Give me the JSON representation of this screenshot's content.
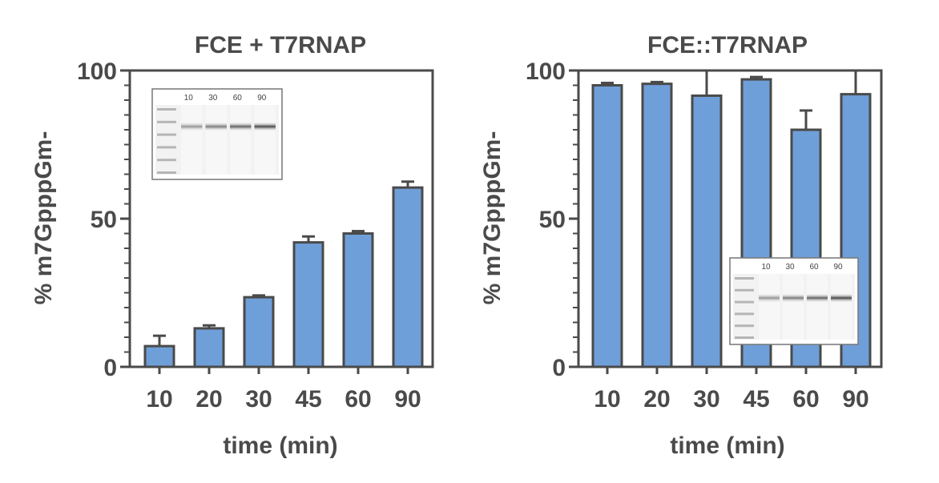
{
  "chart_data": [
    {
      "type": "bar",
      "title": "FCE + T7RNAP",
      "xlabel": "time (min)",
      "ylabel": "% m7GpppGm-",
      "categories": [
        "10",
        "20",
        "30",
        "45",
        "60",
        "90"
      ],
      "values": [
        7,
        13,
        23.5,
        42,
        45,
        60.5
      ],
      "errors": [
        3.5,
        1,
        0.6,
        2,
        0.8,
        2
      ],
      "ylim": [
        0,
        100
      ],
      "yticks": [
        0,
        50,
        100
      ],
      "bar_color": "#6f9fd8",
      "inset_gel": {
        "lane_labels": [
          "10",
          "30",
          "60",
          "90"
        ],
        "placement": "top-left"
      }
    },
    {
      "type": "bar",
      "title": "FCE::T7RNAP",
      "xlabel": "time (min)",
      "ylabel": "% m7GpppGm-",
      "categories": [
        "10",
        "20",
        "30",
        "45",
        "60",
        "90"
      ],
      "values": [
        95,
        95.5,
        91.5,
        97,
        80,
        92
      ],
      "errors": [
        0.8,
        0.6,
        8.5,
        0.8,
        6.5,
        8
      ],
      "ylim": [
        0,
        100
      ],
      "yticks": [
        0,
        50,
        100
      ],
      "bar_color": "#6f9fd8",
      "inset_gel": {
        "lane_labels": [
          "10",
          "30",
          "60",
          "90"
        ],
        "placement": "bottom-right"
      }
    }
  ]
}
